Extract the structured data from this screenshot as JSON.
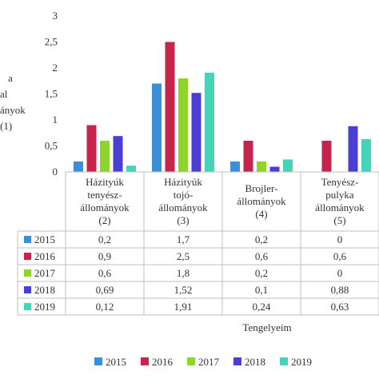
{
  "chart_data": {
    "type": "bar",
    "title": "",
    "ylabel_lines": [
      "a",
      "al",
      "ányok",
      "(1)"
    ],
    "xlabel": "Tengelyeim",
    "ylim": [
      0,
      3
    ],
    "yticks": [
      "0",
      "0,5",
      "1",
      "1,5",
      "2",
      "2,5",
      "3"
    ],
    "grid": false,
    "legend_position": "bottom",
    "categories": [
      {
        "lines": [
          "Házityúk",
          "tenyész-",
          "állományok",
          "(2)"
        ]
      },
      {
        "lines": [
          "Házityúk",
          "tojó-",
          "állományok",
          "(3)"
        ]
      },
      {
        "lines": [
          "Brojler-",
          "állományok",
          "(4)"
        ]
      },
      {
        "lines": [
          "Tenyész-",
          "pulyka",
          "állományok",
          "(5)"
        ]
      }
    ],
    "series": [
      {
        "name": "2015",
        "color": "#3a8fd6",
        "values": [
          0.2,
          1.7,
          0.2,
          0
        ],
        "labels": [
          "0,2",
          "1,7",
          "0,2",
          "0"
        ]
      },
      {
        "name": "2016",
        "color": "#c8234a",
        "values": [
          0.9,
          2.5,
          0.6,
          0.6
        ],
        "labels": [
          "0,9",
          "2,5",
          "0,6",
          "0,6"
        ]
      },
      {
        "name": "2017",
        "color": "#8fd42a",
        "values": [
          0.6,
          1.8,
          0.2,
          0
        ],
        "labels": [
          "0,6",
          "1,8",
          "0,2",
          "0"
        ]
      },
      {
        "name": "2018",
        "color": "#4a3fd0",
        "values": [
          0.69,
          1.52,
          0.1,
          0.88
        ],
        "labels": [
          "0,69",
          "1,52",
          "0,1",
          "0,88"
        ]
      },
      {
        "name": "2019",
        "color": "#45d4b8",
        "values": [
          0.12,
          1.91,
          0.24,
          0.63
        ],
        "labels": [
          "0,12",
          "1,91",
          "0,24",
          "0,63"
        ]
      }
    ]
  }
}
